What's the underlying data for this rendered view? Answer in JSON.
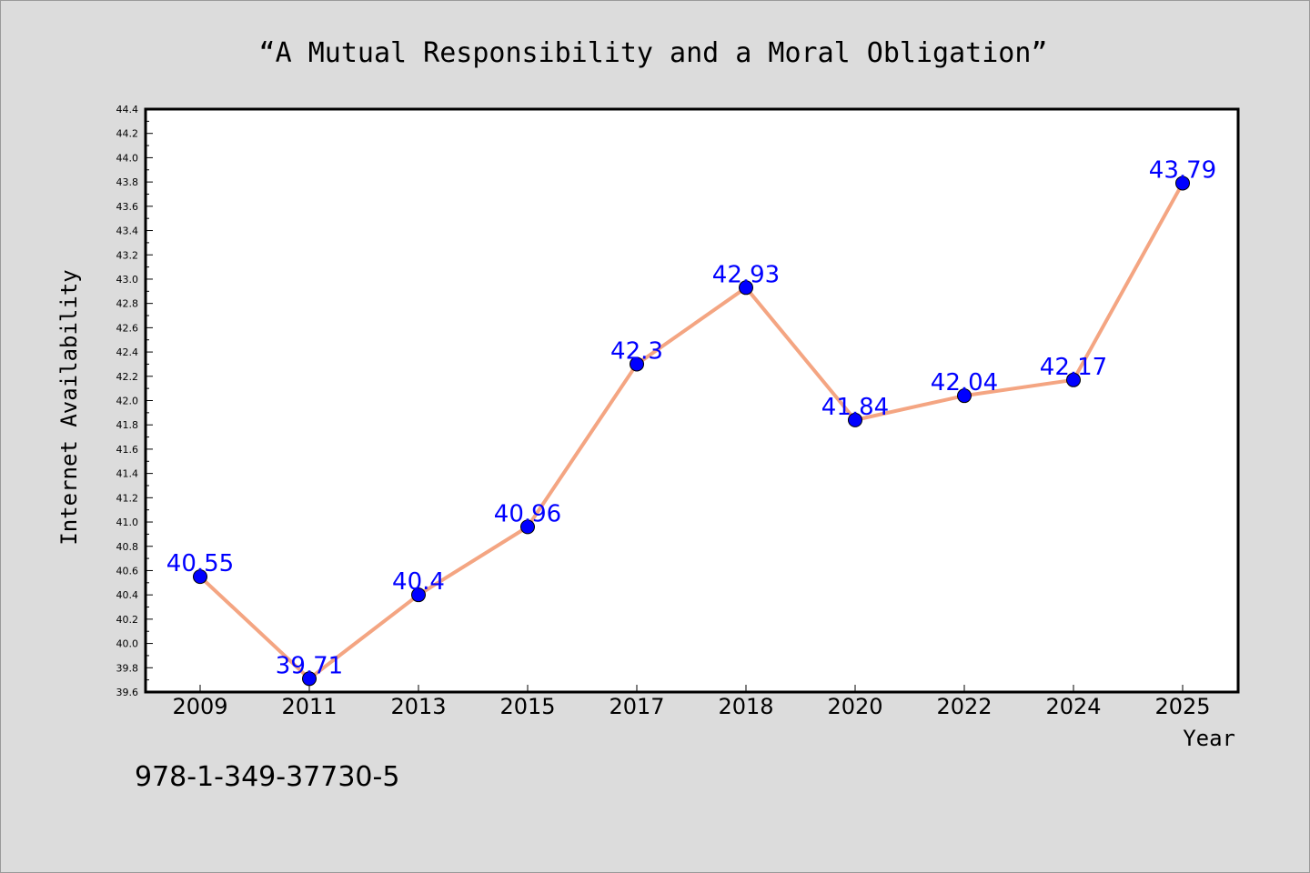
{
  "chart_data": {
    "type": "line",
    "title": "“A Mutual Responsibility and a Moral Obligation”",
    "xlabel": "Year",
    "ylabel": "Internet Availability",
    "categories": [
      "2009",
      "2011",
      "2013",
      "2015",
      "2017",
      "2018",
      "2020",
      "2022",
      "2024",
      "2025"
    ],
    "values": [
      40.55,
      39.71,
      40.4,
      40.96,
      42.3,
      42.93,
      41.84,
      42.04,
      42.17,
      43.79
    ],
    "data_labels": [
      "40.55",
      "39.71",
      "40.4",
      "40.96",
      "42.3",
      "42.93",
      "41.84",
      "42.04",
      "42.17",
      "43.79"
    ],
    "ylim": [
      39.6,
      44.4
    ],
    "yticks": [
      "39.6",
      "39.8",
      "40.0",
      "40.2",
      "40.4",
      "40.6",
      "40.8",
      "41.0",
      "41.2",
      "41.4",
      "41.6",
      "41.8",
      "42.0",
      "42.2",
      "42.4",
      "42.6",
      "42.8",
      "43.0",
      "43.2",
      "43.4",
      "43.6",
      "43.8",
      "44.0",
      "44.2",
      "44.4"
    ],
    "grid": false,
    "line_color": "#f4a582",
    "marker_color": "#0000ff",
    "label_color": "#0000ff"
  },
  "footer_text": "978-1-349-37730-5"
}
